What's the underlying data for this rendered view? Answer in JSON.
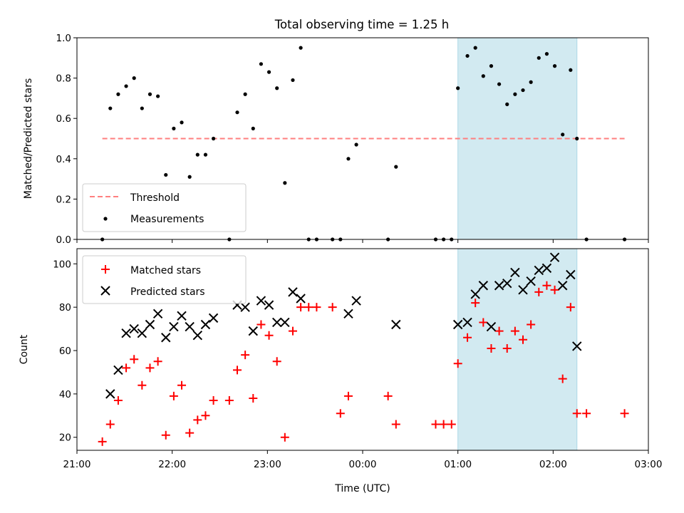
{
  "chart_data": [
    {
      "type": "scatter",
      "title": "Total observing time = 1.25 h",
      "xlabel": "",
      "ylabel": "Matched/Predicted stars",
      "xlim": [
        "2023-01-01T21:00",
        "2023-01-02T03:00"
      ],
      "xticks": [
        "21:00",
        "22:00",
        "23:00",
        "00:00",
        "01:00",
        "02:00",
        "03:00"
      ],
      "ylim": [
        0,
        1.0
      ],
      "yticks": [
        "0.0",
        "0.2",
        "0.4",
        "0.6",
        "0.8",
        "1.0"
      ],
      "highlight_span": {
        "x0": "01:00",
        "x1": "02:15",
        "color": "#add8e6"
      },
      "legend": {
        "position": "lower-left",
        "entries": [
          "Threshold",
          "Measurements"
        ]
      },
      "threshold": {
        "name": "Threshold",
        "x0": "21:16",
        "x1": "02:45",
        "y": 0.5,
        "color": "#ff7f7f",
        "style": "dashed"
      },
      "series": [
        {
          "name": "Measurements",
          "color": "#000000",
          "marker": "dot",
          "points": [
            [
              "21:16",
              0.0
            ],
            [
              "21:21",
              0.65
            ],
            [
              "21:26",
              0.72
            ],
            [
              "21:31",
              0.76
            ],
            [
              "21:36",
              0.8
            ],
            [
              "21:41",
              0.65
            ],
            [
              "21:46",
              0.72
            ],
            [
              "21:51",
              0.71
            ],
            [
              "21:56",
              0.32
            ],
            [
              "22:01",
              0.55
            ],
            [
              "22:06",
              0.58
            ],
            [
              "22:11",
              0.31
            ],
            [
              "22:16",
              0.42
            ],
            [
              "22:21",
              0.42
            ],
            [
              "22:26",
              0.5
            ],
            [
              "22:36",
              0.0
            ],
            [
              "22:41",
              0.63
            ],
            [
              "22:46",
              0.72
            ],
            [
              "22:51",
              0.55
            ],
            [
              "22:56",
              0.87
            ],
            [
              "23:01",
              0.83
            ],
            [
              "23:06",
              0.75
            ],
            [
              "23:11",
              0.28
            ],
            [
              "23:16",
              0.79
            ],
            [
              "23:21",
              0.95
            ],
            [
              "23:26",
              0.0
            ],
            [
              "23:31",
              0.0
            ],
            [
              "23:41",
              0.0
            ],
            [
              "23:46",
              0.0
            ],
            [
              "23:51",
              0.4
            ],
            [
              "23:56",
              0.47
            ],
            [
              "00:16",
              0.0
            ],
            [
              "00:21",
              0.36
            ],
            [
              "00:46",
              0.0
            ],
            [
              "00:51",
              0.0
            ],
            [
              "00:56",
              0.0
            ],
            [
              "01:00",
              0.75
            ],
            [
              "01:06",
              0.91
            ],
            [
              "01:11",
              0.95
            ],
            [
              "01:16",
              0.81
            ],
            [
              "01:21",
              0.86
            ],
            [
              "01:26",
              0.77
            ],
            [
              "01:31",
              0.67
            ],
            [
              "01:36",
              0.72
            ],
            [
              "01:41",
              0.74
            ],
            [
              "01:46",
              0.78
            ],
            [
              "01:51",
              0.9
            ],
            [
              "01:56",
              0.92
            ],
            [
              "02:01",
              0.86
            ],
            [
              "02:06",
              0.52
            ],
            [
              "02:11",
              0.84
            ],
            [
              "02:15",
              0.5
            ],
            [
              "02:21",
              0.0
            ],
            [
              "02:45",
              0.0
            ]
          ]
        }
      ]
    },
    {
      "type": "scatter",
      "title": "",
      "xlabel": "Time (UTC)",
      "ylabel": "Count",
      "xlim": [
        "2023-01-01T21:00",
        "2023-01-02T03:00"
      ],
      "xticks": [
        "21:00",
        "22:00",
        "23:00",
        "00:00",
        "01:00",
        "02:00",
        "03:00"
      ],
      "ylim": [
        14,
        107
      ],
      "yticks": [
        "20",
        "40",
        "60",
        "80",
        "100"
      ],
      "highlight_span": {
        "x0": "01:00",
        "x1": "02:15",
        "color": "#add8e6"
      },
      "legend": {
        "position": "upper-left",
        "entries": [
          "Matched stars",
          "Predicted stars"
        ]
      },
      "series": [
        {
          "name": "Matched stars",
          "color": "#ff0000",
          "marker": "plus",
          "points": [
            [
              "21:16",
              18
            ],
            [
              "21:21",
              26
            ],
            [
              "21:26",
              37
            ],
            [
              "21:31",
              52
            ],
            [
              "21:36",
              56
            ],
            [
              "21:41",
              44
            ],
            [
              "21:46",
              52
            ],
            [
              "21:51",
              55
            ],
            [
              "21:56",
              21
            ],
            [
              "22:01",
              39
            ],
            [
              "22:06",
              44
            ],
            [
              "22:11",
              22
            ],
            [
              "22:16",
              28
            ],
            [
              "22:21",
              30
            ],
            [
              "22:26",
              37
            ],
            [
              "22:36",
              37
            ],
            [
              "22:41",
              51
            ],
            [
              "22:46",
              58
            ],
            [
              "22:51",
              38
            ],
            [
              "22:56",
              72
            ],
            [
              "23:01",
              67
            ],
            [
              "23:06",
              55
            ],
            [
              "23:11",
              20
            ],
            [
              "23:16",
              69
            ],
            [
              "23:21",
              80
            ],
            [
              "23:26",
              80
            ],
            [
              "23:31",
              80
            ],
            [
              "23:41",
              80
            ],
            [
              "23:46",
              31
            ],
            [
              "23:51",
              39
            ],
            [
              "00:16",
              39
            ],
            [
              "00:21",
              26
            ],
            [
              "00:46",
              26
            ],
            [
              "00:51",
              26
            ],
            [
              "00:56",
              26
            ],
            [
              "01:00",
              54
            ],
            [
              "01:06",
              66
            ],
            [
              "01:11",
              82
            ],
            [
              "01:16",
              73
            ],
            [
              "01:21",
              61
            ],
            [
              "01:26",
              69
            ],
            [
              "01:31",
              61
            ],
            [
              "01:36",
              69
            ],
            [
              "01:41",
              65
            ],
            [
              "01:46",
              72
            ],
            [
              "01:51",
              87
            ],
            [
              "01:56",
              90
            ],
            [
              "02:01",
              88
            ],
            [
              "02:06",
              47
            ],
            [
              "02:11",
              80
            ],
            [
              "02:15",
              31
            ],
            [
              "02:21",
              31
            ],
            [
              "02:45",
              31
            ]
          ]
        },
        {
          "name": "Predicted stars",
          "color": "#000000",
          "marker": "x",
          "points": [
            [
              "21:21",
              40
            ],
            [
              "21:26",
              51
            ],
            [
              "21:31",
              68
            ],
            [
              "21:36",
              70
            ],
            [
              "21:41",
              68
            ],
            [
              "21:46",
              72
            ],
            [
              "21:51",
              77
            ],
            [
              "21:56",
              66
            ],
            [
              "22:01",
              71
            ],
            [
              "22:06",
              76
            ],
            [
              "22:11",
              71
            ],
            [
              "22:16",
              67
            ],
            [
              "22:21",
              72
            ],
            [
              "22:26",
              75
            ],
            [
              "22:41",
              81
            ],
            [
              "22:46",
              80
            ],
            [
              "22:51",
              69
            ],
            [
              "22:56",
              83
            ],
            [
              "23:01",
              81
            ],
            [
              "23:06",
              73
            ],
            [
              "23:11",
              73
            ],
            [
              "23:16",
              87
            ],
            [
              "23:21",
              84
            ],
            [
              "23:51",
              77
            ],
            [
              "23:56",
              83
            ],
            [
              "00:21",
              72
            ],
            [
              "01:00",
              72
            ],
            [
              "01:06",
              73
            ],
            [
              "01:11",
              86
            ],
            [
              "01:16",
              90
            ],
            [
              "01:21",
              71
            ],
            [
              "01:26",
              90
            ],
            [
              "01:31",
              91
            ],
            [
              "01:36",
              96
            ],
            [
              "01:41",
              88
            ],
            [
              "01:46",
              92
            ],
            [
              "01:51",
              97
            ],
            [
              "01:56",
              98
            ],
            [
              "02:01",
              103
            ],
            [
              "02:06",
              90
            ],
            [
              "02:11",
              95
            ],
            [
              "02:15",
              62
            ]
          ]
        }
      ]
    }
  ]
}
